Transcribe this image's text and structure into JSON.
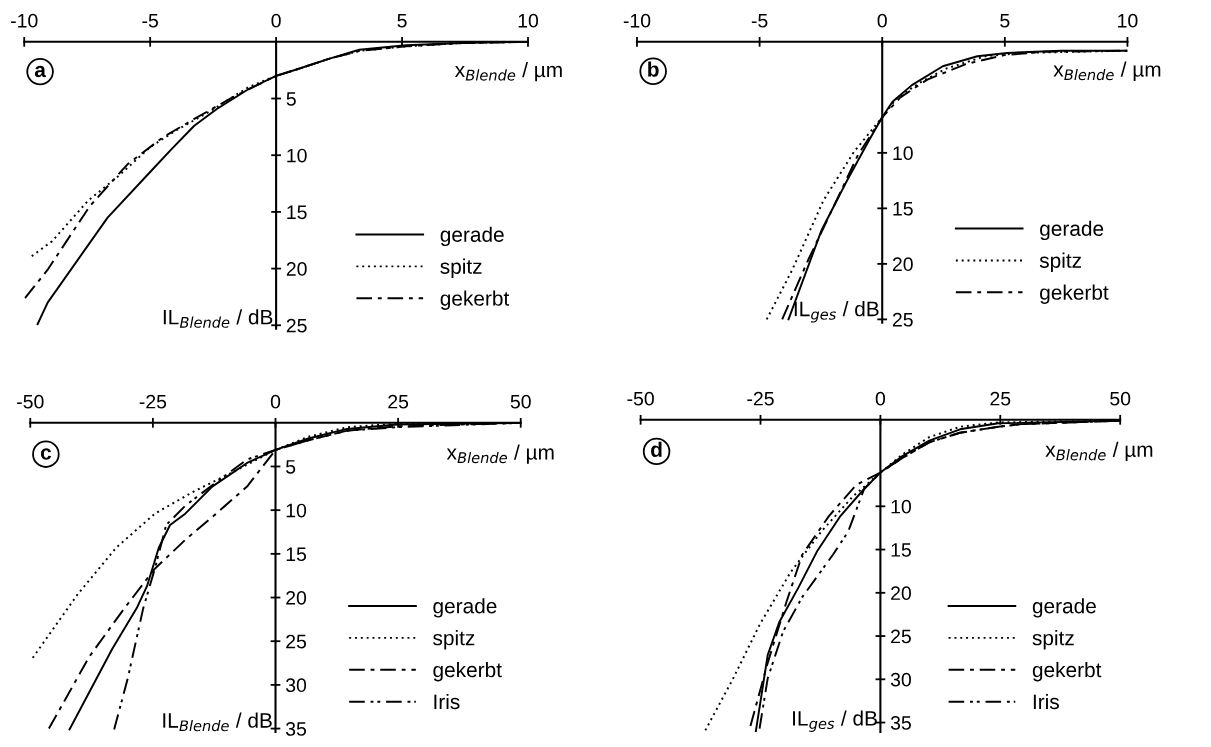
{
  "chart_data": [
    {
      "type": "line",
      "title": "a",
      "xlabel": "x$_{Blende}$ / µm",
      "ylabel": "IL$_{Blende}$ / dB",
      "xlim": [
        -10,
        10
      ],
      "ylim": [
        25.3,
        0
      ],
      "xticks": [
        -10,
        -5,
        0,
        5,
        10
      ],
      "yticks": [
        5,
        10,
        15,
        20,
        25
      ],
      "legend": "bottom right",
      "grid": false,
      "series": [
        {
          "name": "gerade",
          "color": "#000000",
          "line_style": "solid",
          "x": [
            -9.47,
            -9.07,
            -6.69,
            -5.01,
            -4.17,
            -3.25,
            -2.34,
            -1.12,
            0,
            0.87,
            2.09,
            3.3,
            5.15,
            7.4,
            10
          ],
          "values": [
            24.9,
            23.0,
            15.5,
            11.5,
            9.5,
            7.4,
            5.9,
            4.2,
            3.0,
            2.4,
            1.5,
            0.7,
            0.3,
            0.1,
            0
          ]
        },
        {
          "name": "spitz",
          "color": "#000000",
          "line_style": "dotted",
          "x": [
            -9.7,
            -8.9,
            -7.46,
            -6.24,
            -5.01,
            -3.96,
            -2.6,
            -1.1,
            0,
            0.87,
            2.09,
            3.3,
            5.15,
            7.4,
            10
          ],
          "values": [
            18.9,
            17.6,
            14.0,
            11.8,
            9.3,
            7.8,
            6.1,
            4.0,
            3.0,
            2.4,
            1.5,
            0.8,
            0.4,
            0.1,
            0
          ]
        },
        {
          "name": "gekerbt",
          "color": "#000000",
          "line_style": "dashdot",
          "x": [
            -9.97,
            -9.07,
            -7.4,
            -5.9,
            -4.48,
            -3.25,
            -1.73,
            0,
            0.87,
            2.09,
            3.3,
            5.15,
            7.4,
            10
          ],
          "values": [
            22.6,
            20.1,
            14.5,
            10.8,
            8.4,
            6.8,
            4.9,
            3.0,
            2.4,
            1.5,
            0.8,
            0.4,
            0.1,
            0
          ]
        }
      ]
    },
    {
      "type": "line",
      "title": "b",
      "xlabel": "x$_{Blende}$ / µm",
      "ylabel": "IL$_{ges}$ / dB",
      "xlim": [
        -10,
        10
      ],
      "ylim": [
        25.3,
        0
      ],
      "xticks": [
        -10,
        -5,
        0,
        5,
        10
      ],
      "yticks": [
        10,
        15,
        20,
        25
      ],
      "legend": "bottom right",
      "grid": false,
      "series": [
        {
          "name": "gerade",
          "color": "#000000",
          "line_style": "solid",
          "x": [
            -3.82,
            -2.48,
            -1.46,
            -0.52,
            0,
            0.42,
            1.21,
            2.47,
            3.88,
            5.1,
            7.3,
            10
          ],
          "values": [
            25.0,
            17.0,
            12.6,
            8.8,
            6.8,
            5.4,
            3.9,
            2.2,
            1.3,
            1.0,
            0.8,
            0.8
          ]
        },
        {
          "name": "spitz",
          "color": "#000000",
          "line_style": "dotted",
          "x": [
            -4.71,
            -3.66,
            -2.4,
            -1.15,
            0,
            0.58,
            1.52,
            2.62,
            4.2,
            5.77,
            10
          ],
          "values": [
            25.0,
            20.5,
            14.3,
            9.9,
            6.8,
            5.1,
            3.7,
            2.4,
            1.3,
            1.0,
            0.8
          ]
        },
        {
          "name": "gekerbt",
          "color": "#000000",
          "line_style": "dashdot",
          "x": [
            -4.08,
            -3.03,
            -1.93,
            -0.99,
            0,
            0.74,
            1.84,
            3.41,
            4.98,
            6.55,
            10
          ],
          "values": [
            25.0,
            19.7,
            14.6,
            10.2,
            6.8,
            5.0,
            3.4,
            2.0,
            1.2,
            0.9,
            0.8
          ]
        }
      ]
    },
    {
      "type": "line",
      "title": "c",
      "xlabel": "x$_{Blende}$ / µm",
      "ylabel": "IL$_{Blende}$ / dB",
      "xlim": [
        -50,
        50
      ],
      "ylim": [
        35.4,
        0
      ],
      "xticks": [
        -50,
        -25,
        0,
        25,
        50
      ],
      "yticks": [
        5,
        10,
        15,
        20,
        25,
        30,
        35
      ],
      "legend": "bottom right",
      "grid": false,
      "series": [
        {
          "name": "gerade",
          "color": "#000000",
          "line_style": "solid",
          "x": [
            -42.0,
            -33.3,
            -28.2,
            -26.2,
            -23.8,
            -21.5,
            -18.4,
            -12.9,
            -5.8,
            0,
            6.7,
            14.6,
            24.8,
            50
          ],
          "values": [
            35.1,
            25.9,
            21.1,
            18.7,
            14.3,
            11.7,
            10.4,
            7.3,
            4.6,
            3.1,
            1.8,
            0.7,
            0.2,
            0
          ]
        },
        {
          "name": "spitz",
          "color": "#000000",
          "line_style": "dotted",
          "x": [
            -49.5,
            -40.3,
            -32.5,
            -24.6,
            -16.8,
            -8.9,
            0,
            6.7,
            14.6,
            24.8,
            50
          ],
          "values": [
            26.9,
            19.6,
            14.3,
            10.4,
            7.9,
            5.7,
            3.1,
            1.6,
            0.5,
            0.1,
            0
          ]
        },
        {
          "name": "gekerbt",
          "color": "#000000",
          "line_style": "dashdot",
          "x": [
            -46.2,
            -38.0,
            -30.9,
            -24.6,
            -18.4,
            -12.1,
            -5.8,
            0,
            6.7,
            14.6,
            24.8,
            50
          ],
          "values": [
            35.0,
            26.8,
            21.3,
            16.7,
            13.4,
            10.4,
            7.3,
            3.1,
            2.0,
            0.9,
            0.4,
            0
          ]
        },
        {
          "name": "Iris",
          "color": "#000000",
          "line_style": "dashdotdot",
          "x": [
            -32.9,
            -30.1,
            -27.0,
            -24.6,
            -22.3,
            -18.4,
            -12.1,
            -5.8,
            0,
            6.7,
            14.6,
            24.8,
            50
          ],
          "values": [
            35.1,
            29.2,
            21.3,
            16.7,
            11.7,
            9.5,
            6.8,
            4.2,
            3.1,
            2.0,
            0.9,
            0.5,
            0
          ]
        }
      ]
    },
    {
      "type": "line",
      "title": "d",
      "xlabel": "x$_{Blende}$ / µm",
      "ylabel": "IL$_{ges}$ / dB",
      "xlim": [
        -50,
        50
      ],
      "ylim": [
        36.1,
        0
      ],
      "xticks": [
        -50,
        -25,
        0,
        25,
        50
      ],
      "yticks": [
        10,
        15,
        20,
        25,
        30,
        35
      ],
      "legend": "bottom right",
      "grid": false,
      "series": [
        {
          "name": "gerade",
          "color": "#000000",
          "line_style": "solid",
          "x": [
            -26.0,
            -23.5,
            -21.1,
            -17.1,
            -13.1,
            -8.3,
            -3.4,
            0,
            4.6,
            10.2,
            16.6,
            24.6,
            50
          ],
          "values": [
            36.1,
            27.2,
            23.4,
            19.4,
            15.1,
            11.1,
            8.0,
            6.1,
            4.2,
            2.4,
            1.1,
            0.4,
            0.1
          ]
        },
        {
          "name": "spitz",
          "color": "#000000",
          "line_style": "dotted",
          "x": [
            -36.5,
            -30.7,
            -25.1,
            -18.7,
            -12.3,
            -5.8,
            0,
            4.6,
            10.2,
            16.6,
            24.6,
            50
          ],
          "values": [
            35.9,
            29.9,
            23.6,
            17.6,
            12.9,
            8.9,
            6.1,
            4.0,
            2.0,
            0.8,
            0.3,
            0.1
          ]
        },
        {
          "name": "gekerbt",
          "color": "#000000",
          "line_style": "dashdot",
          "x": [
            -27.1,
            -23.5,
            -19.5,
            -16.3,
            -10.7,
            -5.0,
            0,
            4.6,
            10.2,
            16.6,
            24.6,
            29.4,
            50
          ],
          "values": [
            35.4,
            28.1,
            20.9,
            15.6,
            11.1,
            7.5,
            6.1,
            4.4,
            2.6,
            1.5,
            0.8,
            0.5,
            0.1
          ]
        },
        {
          "name": "Iris",
          "color": "#000000",
          "line_style": "dashdotdot",
          "x": [
            -25.2,
            -23.5,
            -20.3,
            -16.3,
            -9.9,
            -6.7,
            -3.4,
            0,
            4.6,
            10.2,
            16.6,
            24.6,
            29.4,
            50
          ],
          "values": [
            35.7,
            29.9,
            24.5,
            20.5,
            15.6,
            12.9,
            8.0,
            6.1,
            4.4,
            2.6,
            1.5,
            0.8,
            0.5,
            0.1
          ]
        }
      ]
    }
  ]
}
